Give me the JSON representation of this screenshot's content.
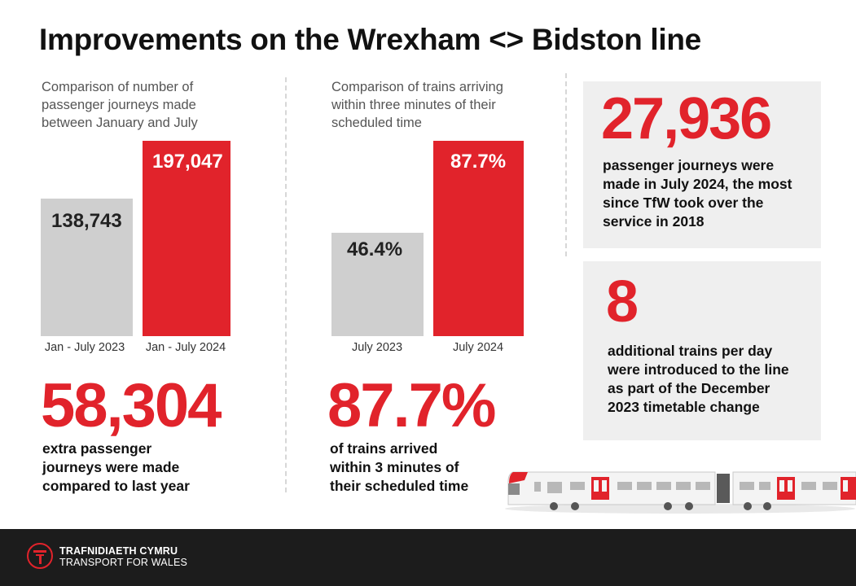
{
  "header": {
    "title": "Improvements on the Wrexham <> Bidston line"
  },
  "journeys": {
    "subtitle_lines": [
      "Comparison of number of",
      "passenger journeys made",
      "between January and July"
    ],
    "chart_data": {
      "type": "bar",
      "categories": [
        "Jan - July 2023",
        "Jan - July 2024"
      ],
      "values": [
        138743,
        197047
      ],
      "data_labels": [
        "138,743",
        "197,047"
      ],
      "colors": [
        "#cfcfcf",
        "#e1232b"
      ]
    },
    "big_number": "58,304",
    "desc_lines": [
      "extra passenger",
      "journeys were made",
      "compared to last year"
    ]
  },
  "punctuality": {
    "subtitle_lines": [
      "Comparison of trains arriving",
      "within three minutes of their",
      "scheduled time"
    ],
    "chart_data": {
      "type": "bar",
      "categories": [
        "July 2023",
        "July 2024"
      ],
      "values": [
        46.4,
        87.7
      ],
      "data_labels": [
        "46.4%",
        "87.7%"
      ],
      "colors": [
        "#cfcfcf",
        "#e1232b"
      ]
    },
    "big_number": "87.7%",
    "desc_lines": [
      "of trains arrived",
      "within 3 minutes of",
      "their scheduled time"
    ]
  },
  "stat_july": {
    "number": "27,936",
    "desc_lines": [
      "passenger journeys were",
      "made in July 2024, the most",
      "since TfW took over the",
      "service in 2018"
    ]
  },
  "stat_trains": {
    "number": "8",
    "desc_lines": [
      "additional trains per day",
      "were introduced to the line",
      "as part of the December",
      "2023 timetable change"
    ]
  },
  "footer": {
    "brand_welsh": "TRAFNIDIAETH CYMRU",
    "brand_english": "TRANSPORT FOR WALES"
  },
  "colors": {
    "accent": "#e1232b",
    "grey_bar": "#cfcfcf",
    "panel": "#efefef",
    "footer": "#1c1c1c"
  }
}
